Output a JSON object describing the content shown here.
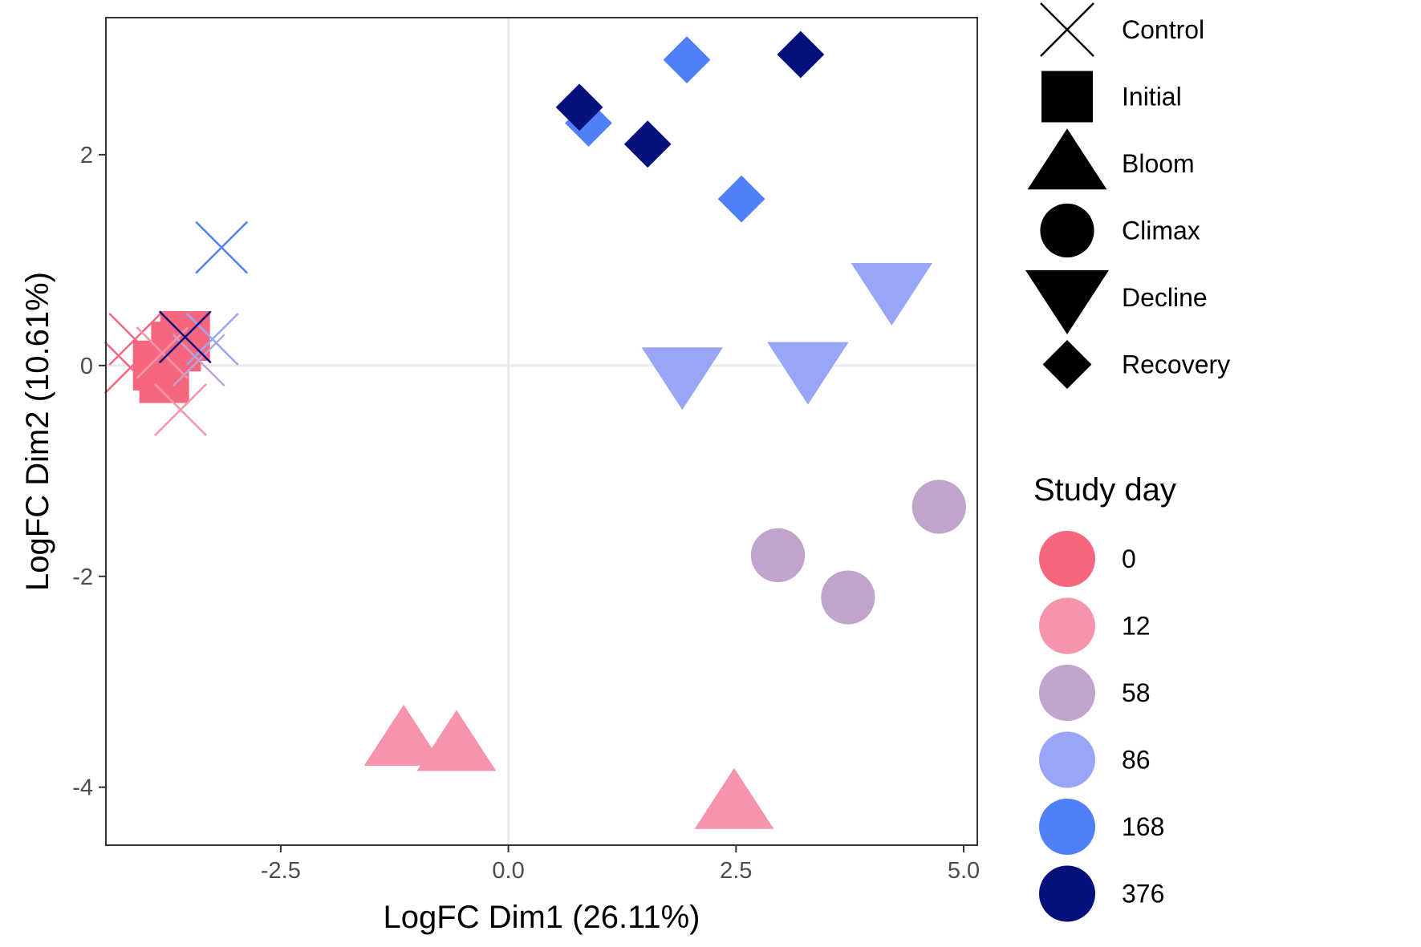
{
  "chart_data": {
    "type": "scatter",
    "xlabel": "LogFC Dim1 (26.11%)",
    "ylabel": "LogFC Dim2 (10.61%)",
    "xlim": [
      -4.42,
      5.15
    ],
    "ylim": [
      -4.55,
      3.3
    ],
    "xticks": [
      -2.5,
      0.0,
      2.5,
      5.0
    ],
    "xtick_labels": [
      "-2.5",
      "0.0",
      "2.5",
      "5.0"
    ],
    "yticks": [
      -4,
      -2,
      0,
      2
    ],
    "ytick_labels": [
      "-4",
      "-2",
      "0",
      "2"
    ],
    "grid": "zero-lines",
    "shape_legend": {
      "placement": "right-top",
      "entries": [
        {
          "label": "Control",
          "shape": "cross-icon"
        },
        {
          "label": "Initial",
          "shape": "square-icon"
        },
        {
          "label": "Bloom",
          "shape": "triangle-up-icon"
        },
        {
          "label": "Climax",
          "shape": "circle-icon"
        },
        {
          "label": "Decline",
          "shape": "triangle-down-open-icon"
        },
        {
          "label": "Recovery",
          "shape": "diamond-icon"
        }
      ]
    },
    "color_legend": {
      "title": "Study day",
      "placement": "right-bottom",
      "entries": [
        {
          "label": "0",
          "color": "#F6667E"
        },
        {
          "label": "12",
          "color": "#F694AC"
        },
        {
          "label": "58",
          "color": "#C0A4CC"
        },
        {
          "label": "86",
          "color": "#99A6F7"
        },
        {
          "label": "168",
          "color": "#4F80F7"
        },
        {
          "label": "376",
          "color": "#05107D"
        }
      ]
    },
    "points": [
      {
        "phase": "Initial",
        "day": "0",
        "x": -3.85,
        "y": 0.0
      },
      {
        "phase": "Initial",
        "day": "0",
        "x": -3.65,
        "y": 0.18
      },
      {
        "phase": "Initial",
        "day": "0",
        "x": -3.55,
        "y": 0.28
      },
      {
        "phase": "Initial",
        "day": "0",
        "x": -3.78,
        "y": -0.12
      },
      {
        "phase": "Control",
        "day": "0",
        "x": -4.1,
        "y": 0.25
      },
      {
        "phase": "Control",
        "day": "0",
        "x": -4.15,
        "y": -0.02
      },
      {
        "phase": "Control",
        "day": "12",
        "x": -3.6,
        "y": -0.42
      },
      {
        "phase": "Control",
        "day": "12",
        "x": -3.8,
        "y": 0.12
      },
      {
        "phase": "Control",
        "day": "58",
        "x": -3.4,
        "y": 0.05
      },
      {
        "phase": "Control",
        "day": "86",
        "x": -3.25,
        "y": 0.25
      },
      {
        "phase": "Control",
        "day": "168",
        "x": -3.15,
        "y": 1.12
      },
      {
        "phase": "Control",
        "day": "376",
        "x": -3.55,
        "y": 0.27
      },
      {
        "phase": "Bloom",
        "day": "12",
        "x": -1.15,
        "y": -3.55
      },
      {
        "phase": "Bloom",
        "day": "12",
        "x": -0.57,
        "y": -3.6
      },
      {
        "phase": "Bloom",
        "day": "12",
        "x": 2.48,
        "y": -4.15
      },
      {
        "phase": "Climax",
        "day": "58",
        "x": 2.96,
        "y": -1.8
      },
      {
        "phase": "Climax",
        "day": "58",
        "x": 3.73,
        "y": -2.2
      },
      {
        "phase": "Climax",
        "day": "58",
        "x": 4.73,
        "y": -1.34
      },
      {
        "phase": "Decline",
        "day": "86",
        "x": 1.91,
        "y": -0.08
      },
      {
        "phase": "Decline",
        "day": "86",
        "x": 3.29,
        "y": -0.03
      },
      {
        "phase": "Decline",
        "day": "86",
        "x": 4.21,
        "y": 0.72
      },
      {
        "phase": "Recovery",
        "day": "168",
        "x": 0.88,
        "y": 2.3
      },
      {
        "phase": "Recovery",
        "day": "168",
        "x": 1.96,
        "y": 2.9
      },
      {
        "phase": "Recovery",
        "day": "168",
        "x": 2.56,
        "y": 1.58
      },
      {
        "phase": "Recovery",
        "day": "376",
        "x": 0.78,
        "y": 2.45
      },
      {
        "phase": "Recovery",
        "day": "376",
        "x": 1.53,
        "y": 2.1
      },
      {
        "phase": "Recovery",
        "day": "376",
        "x": 3.21,
        "y": 2.95
      }
    ]
  }
}
